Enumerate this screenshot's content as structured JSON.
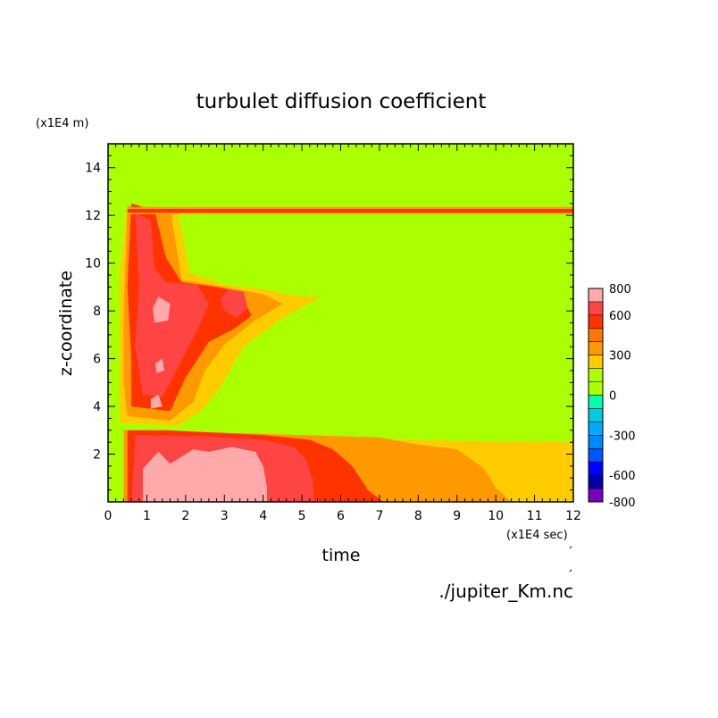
{
  "chart_data": {
    "type": "heatmap",
    "title": "turbulet diffusion coefficient",
    "xlabel": "time",
    "ylabel": "z-coordinate",
    "x_unit": "(x1E4 sec)",
    "y_unit": "(x1E4 m)",
    "xlim": [
      0,
      12
    ],
    "ylim": [
      0,
      15
    ],
    "x_ticks": [
      0,
      1,
      2,
      3,
      4,
      5,
      6,
      7,
      8,
      9,
      10,
      11,
      12
    ],
    "y_ticks": [
      2,
      4,
      6,
      8,
      10,
      12,
      14
    ],
    "background_level_color": "#aaff00",
    "colorbar": {
      "levels": [
        -800,
        -700,
        -600,
        -500,
        -400,
        -300,
        -200,
        -100,
        0,
        100,
        200,
        300,
        400,
        500,
        600,
        700,
        800
      ],
      "tick_labels": [
        "800",
        "600",
        "300",
        "0",
        "-300",
        "-600",
        "-800"
      ],
      "tick_values": [
        800,
        600,
        300,
        0,
        -300,
        -600,
        -800
      ],
      "colors": [
        {
          "from": -800,
          "to": -700,
          "color": "#7700bb"
        },
        {
          "from": -700,
          "to": -600,
          "color": "#0000aa"
        },
        {
          "from": -600,
          "to": -500,
          "color": "#0000ff"
        },
        {
          "from": -500,
          "to": -400,
          "color": "#0055ff"
        },
        {
          "from": -400,
          "to": -300,
          "color": "#0088ff"
        },
        {
          "from": -300,
          "to": -200,
          "color": "#00aaff"
        },
        {
          "from": -200,
          "to": -100,
          "color": "#00ccdd"
        },
        {
          "from": -100,
          "to": 0,
          "color": "#00ffaa"
        },
        {
          "from": 0,
          "to": 100,
          "color": "#aaff00"
        },
        {
          "from": 100,
          "to": 200,
          "color": "#aaff00"
        },
        {
          "from": 200,
          "to": 300,
          "color": "#ffcc00"
        },
        {
          "from": 300,
          "to": 400,
          "color": "#ff9900"
        },
        {
          "from": 400,
          "to": 500,
          "color": "#ff7700"
        },
        {
          "from": 500,
          "to": 600,
          "color": "#ff3300"
        },
        {
          "from": 600,
          "to": 700,
          "color": "#ff4444"
        },
        {
          "from": 700,
          "to": 800,
          "color": "#ffaaaa"
        }
      ]
    },
    "regions": [
      {
        "name": "lower-boundary-yellow",
        "value": 250,
        "color": "#ffcc00",
        "polygon": [
          [
            0.4,
            0
          ],
          [
            12,
            0
          ],
          [
            12,
            2.5
          ],
          [
            7,
            2.6
          ],
          [
            0.4,
            2.6
          ]
        ]
      },
      {
        "name": "lower-boundary-orange",
        "value": 350,
        "color": "#ff9900",
        "polygon": [
          [
            0.4,
            0
          ],
          [
            10.4,
            0
          ],
          [
            10,
            0.6
          ],
          [
            9.7,
            1.4
          ],
          [
            9,
            2.2
          ],
          [
            8,
            2.4
          ],
          [
            7,
            2.7
          ],
          [
            3,
            2.9
          ],
          [
            0.4,
            3.0
          ]
        ]
      },
      {
        "name": "lower-boundary-red",
        "value": 550,
        "color": "#ff3300",
        "polygon": [
          [
            0.5,
            0
          ],
          [
            7.1,
            0
          ],
          [
            6.7,
            0.5
          ],
          [
            6.3,
            1.5
          ],
          [
            5.8,
            2.2
          ],
          [
            5.2,
            2.6
          ],
          [
            4,
            2.8
          ],
          [
            1.5,
            3.0
          ],
          [
            0.5,
            3.0
          ]
        ]
      },
      {
        "name": "lower-boundary-light-red",
        "value": 650,
        "color": "#ff4444",
        "polygon": [
          [
            0.6,
            0
          ],
          [
            5.3,
            0
          ],
          [
            5.3,
            0.8
          ],
          [
            5.1,
            1.8
          ],
          [
            4.8,
            2.3
          ],
          [
            4,
            2.6
          ],
          [
            2.5,
            2.75
          ],
          [
            0.7,
            2.8
          ]
        ]
      },
      {
        "name": "lower-boundary-pink",
        "value": 750,
        "color": "#ffaaaa",
        "polygon": [
          [
            0.9,
            0
          ],
          [
            4.1,
            0
          ],
          [
            4.1,
            0.6
          ],
          [
            4,
            1.5
          ],
          [
            3.8,
            2.1
          ],
          [
            3.2,
            2.3
          ],
          [
            2.6,
            2.1
          ],
          [
            2.2,
            2.2
          ],
          [
            1.6,
            1.6
          ],
          [
            1.3,
            2.1
          ],
          [
            0.9,
            1.4
          ]
        ]
      },
      {
        "name": "upper-yellow",
        "value": 250,
        "color": "#ffcc00",
        "polygon": [
          [
            0.3,
            3.3
          ],
          [
            1.8,
            3.2
          ],
          [
            2.4,
            3.8
          ],
          [
            2.9,
            4.8
          ],
          [
            3.5,
            6.5
          ],
          [
            4.5,
            7.7
          ],
          [
            5.5,
            8.6
          ],
          [
            4.9,
            8.6
          ],
          [
            4,
            8.9
          ],
          [
            3,
            9.1
          ],
          [
            2.1,
            9.6
          ],
          [
            1.8,
            12.2
          ],
          [
            0.5,
            12.4
          ],
          [
            0.3,
            9.5
          ],
          [
            0.3,
            6
          ]
        ]
      },
      {
        "name": "upper-orange",
        "value": 350,
        "color": "#ff9900",
        "polygon": [
          [
            0.5,
            3.6
          ],
          [
            1.6,
            3.4
          ],
          [
            2.2,
            4.2
          ],
          [
            2.5,
            5.5
          ],
          [
            3,
            6.6
          ],
          [
            3.8,
            7.6
          ],
          [
            4.5,
            8.3
          ],
          [
            4,
            8.7
          ],
          [
            3,
            9.0
          ],
          [
            1.9,
            9.3
          ],
          [
            1.6,
            12.3
          ],
          [
            0.5,
            12.4
          ],
          [
            0.4,
            8
          ],
          [
            0.4,
            5
          ]
        ]
      },
      {
        "name": "upper-red",
        "value": 550,
        "color": "#ff3300",
        "polygon": [
          [
            0.6,
            4.0
          ],
          [
            1.6,
            3.8
          ],
          [
            2.0,
            5.2
          ],
          [
            2.6,
            6.7
          ],
          [
            3.3,
            7.3
          ],
          [
            3.7,
            7.8
          ],
          [
            3.4,
            8.8
          ],
          [
            2.8,
            9.0
          ],
          [
            1.9,
            9.2
          ],
          [
            1.5,
            10.2
          ],
          [
            1.2,
            12.2
          ],
          [
            0.6,
            12.5
          ],
          [
            0.5,
            9
          ],
          [
            0.6,
            6
          ]
        ]
      },
      {
        "name": "upper-light-red",
        "value": 650,
        "color": "#ff4444",
        "polygon": [
          [
            0.9,
            4.5
          ],
          [
            1.4,
            4.4
          ],
          [
            1.8,
            5.6
          ],
          [
            2.3,
            7.2
          ],
          [
            2.6,
            8.3
          ],
          [
            2.3,
            9.1
          ],
          [
            1.5,
            9.2
          ],
          [
            1.2,
            9.8
          ],
          [
            1.1,
            11.8
          ],
          [
            0.7,
            12.1
          ],
          [
            0.8,
            9
          ],
          [
            0.7,
            6.5
          ]
        ]
      },
      {
        "name": "upper-light-red-blob",
        "value": 650,
        "color": "#ff4444",
        "polygon": [
          [
            3.0,
            8.0
          ],
          [
            3.3,
            7.7
          ],
          [
            3.6,
            8.1
          ],
          [
            3.5,
            8.8
          ],
          [
            3.1,
            8.9
          ],
          [
            2.9,
            8.5
          ]
        ]
      },
      {
        "name": "upper-pink-patch-1",
        "value": 750,
        "color": "#ffaaaa",
        "polygon": [
          [
            1.2,
            7.5
          ],
          [
            1.55,
            7.6
          ],
          [
            1.6,
            8.3
          ],
          [
            1.3,
            8.6
          ],
          [
            1.15,
            8.1
          ]
        ]
      },
      {
        "name": "upper-pink-patch-2",
        "value": 750,
        "color": "#ffaaaa",
        "polygon": [
          [
            1.25,
            5.4
          ],
          [
            1.45,
            5.5
          ],
          [
            1.4,
            6.0
          ],
          [
            1.22,
            5.8
          ]
        ]
      },
      {
        "name": "upper-pink-patch-3",
        "value": 750,
        "color": "#ffaaaa",
        "polygon": [
          [
            1.1,
            3.9
          ],
          [
            1.4,
            4.0
          ],
          [
            1.3,
            4.5
          ],
          [
            1.1,
            4.3
          ]
        ]
      },
      {
        "name": "top-band-orange",
        "value": 350,
        "color": "#ff9900",
        "polygon": [
          [
            0.5,
            12.05
          ],
          [
            12,
            12.05
          ],
          [
            12,
            12.35
          ],
          [
            0.5,
            12.35
          ]
        ]
      },
      {
        "name": "top-band-red",
        "value": 550,
        "color": "#ff3300",
        "polygon": [
          [
            0.5,
            12.12
          ],
          [
            12,
            12.12
          ],
          [
            12,
            12.27
          ],
          [
            0.5,
            12.27
          ]
        ]
      }
    ]
  },
  "annotations": {
    "source_file": "./jupiter_Km.nc"
  }
}
